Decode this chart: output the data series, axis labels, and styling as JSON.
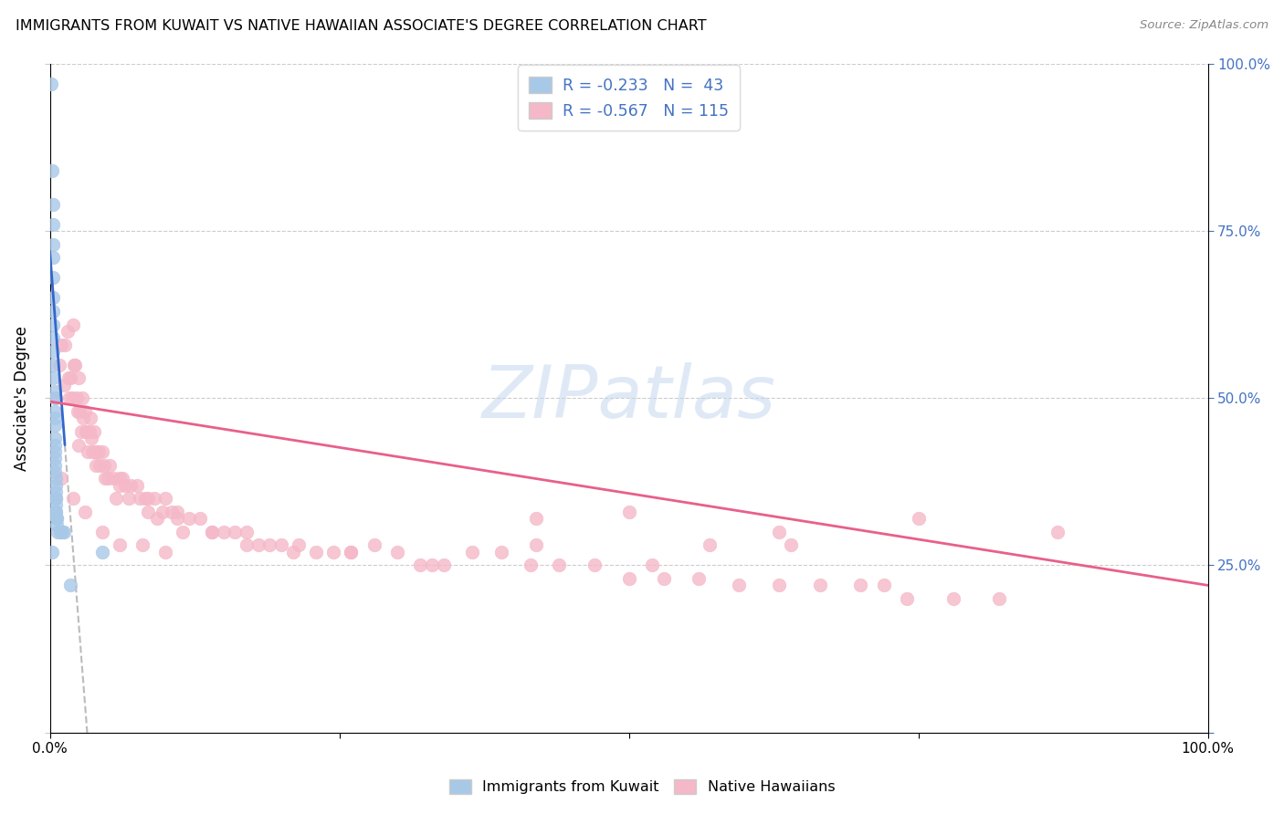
{
  "title": "IMMIGRANTS FROM KUWAIT VS NATIVE HAWAIIAN ASSOCIATE'S DEGREE CORRELATION CHART",
  "source": "Source: ZipAtlas.com",
  "ylabel": "Associate's Degree",
  "blue_color": "#a8c8e8",
  "pink_color": "#f5b8c8",
  "blue_line_color": "#3366cc",
  "pink_line_color": "#e8608a",
  "dash_color": "#bbbbbb",
  "watermark_text": "ZIPatlas",
  "watermark_color": "#c5d8f0",
  "blue_R": -0.233,
  "blue_N": 43,
  "pink_R": -0.567,
  "pink_N": 115,
  "xlim": [
    0.0,
    1.0
  ],
  "ylim": [
    0.0,
    1.0
  ],
  "right_ytick_color": "#4472c4",
  "blue_scatter_x": [
    0.001,
    0.002,
    0.002,
    0.003,
    0.003,
    0.003,
    0.003,
    0.003,
    0.003,
    0.003,
    0.003,
    0.003,
    0.003,
    0.003,
    0.003,
    0.004,
    0.004,
    0.004,
    0.004,
    0.004,
    0.004,
    0.004,
    0.004,
    0.004,
    0.004,
    0.004,
    0.005,
    0.005,
    0.005,
    0.005,
    0.005,
    0.005,
    0.005,
    0.005,
    0.006,
    0.006,
    0.006,
    0.007,
    0.009,
    0.011,
    0.012,
    0.018,
    0.045
  ],
  "blue_scatter_y": [
    0.97,
    0.84,
    0.27,
    0.79,
    0.76,
    0.73,
    0.71,
    0.68,
    0.65,
    0.63,
    0.61,
    0.59,
    0.57,
    0.55,
    0.53,
    0.51,
    0.5,
    0.48,
    0.47,
    0.46,
    0.44,
    0.43,
    0.42,
    0.41,
    0.4,
    0.39,
    0.38,
    0.37,
    0.36,
    0.35,
    0.35,
    0.34,
    0.33,
    0.33,
    0.32,
    0.32,
    0.31,
    0.3,
    0.3,
    0.3,
    0.3,
    0.22,
    0.27
  ],
  "pink_scatter_x": [
    0.005,
    0.008,
    0.01,
    0.012,
    0.013,
    0.015,
    0.016,
    0.017,
    0.018,
    0.019,
    0.02,
    0.021,
    0.022,
    0.023,
    0.024,
    0.025,
    0.026,
    0.027,
    0.028,
    0.029,
    0.03,
    0.031,
    0.032,
    0.033,
    0.034,
    0.035,
    0.036,
    0.037,
    0.038,
    0.039,
    0.04,
    0.042,
    0.043,
    0.045,
    0.047,
    0.048,
    0.05,
    0.052,
    0.055,
    0.057,
    0.06,
    0.063,
    0.065,
    0.068,
    0.07,
    0.075,
    0.078,
    0.082,
    0.085,
    0.09,
    0.093,
    0.097,
    0.1,
    0.105,
    0.11,
    0.115,
    0.12,
    0.13,
    0.14,
    0.15,
    0.16,
    0.17,
    0.18,
    0.19,
    0.2,
    0.215,
    0.23,
    0.245,
    0.26,
    0.28,
    0.3,
    0.32,
    0.34,
    0.365,
    0.39,
    0.415,
    0.44,
    0.47,
    0.5,
    0.53,
    0.56,
    0.595,
    0.63,
    0.665,
    0.7,
    0.74,
    0.78,
    0.82,
    0.01,
    0.02,
    0.03,
    0.045,
    0.06,
    0.08,
    0.1,
    0.025,
    0.04,
    0.06,
    0.085,
    0.11,
    0.14,
    0.17,
    0.21,
    0.26,
    0.33,
    0.42,
    0.52,
    0.63,
    0.75,
    0.87,
    0.42,
    0.5,
    0.57,
    0.64,
    0.72
  ],
  "pink_scatter_y": [
    0.5,
    0.55,
    0.58,
    0.52,
    0.58,
    0.6,
    0.53,
    0.5,
    0.53,
    0.5,
    0.61,
    0.55,
    0.55,
    0.5,
    0.48,
    0.53,
    0.48,
    0.45,
    0.5,
    0.47,
    0.48,
    0.45,
    0.45,
    0.42,
    0.45,
    0.47,
    0.44,
    0.42,
    0.45,
    0.42,
    0.42,
    0.42,
    0.4,
    0.42,
    0.4,
    0.38,
    0.38,
    0.4,
    0.38,
    0.35,
    0.38,
    0.38,
    0.37,
    0.35,
    0.37,
    0.37,
    0.35,
    0.35,
    0.33,
    0.35,
    0.32,
    0.33,
    0.35,
    0.33,
    0.33,
    0.3,
    0.32,
    0.32,
    0.3,
    0.3,
    0.3,
    0.3,
    0.28,
    0.28,
    0.28,
    0.28,
    0.27,
    0.27,
    0.27,
    0.28,
    0.27,
    0.25,
    0.25,
    0.27,
    0.27,
    0.25,
    0.25,
    0.25,
    0.23,
    0.23,
    0.23,
    0.22,
    0.22,
    0.22,
    0.22,
    0.2,
    0.2,
    0.2,
    0.38,
    0.35,
    0.33,
    0.3,
    0.28,
    0.28,
    0.27,
    0.43,
    0.4,
    0.37,
    0.35,
    0.32,
    0.3,
    0.28,
    0.27,
    0.27,
    0.25,
    0.28,
    0.25,
    0.3,
    0.32,
    0.3,
    0.32,
    0.33,
    0.28,
    0.28,
    0.22
  ],
  "blue_line_x0": 0.0,
  "blue_line_x1": 0.013,
  "blue_line_y0": 0.72,
  "blue_line_y1": 0.43,
  "dash_line_x0": 0.013,
  "dash_line_x1": 0.38,
  "pink_line_x0": 0.0,
  "pink_line_x1": 1.0,
  "pink_line_y0": 0.495,
  "pink_line_y1": 0.22
}
